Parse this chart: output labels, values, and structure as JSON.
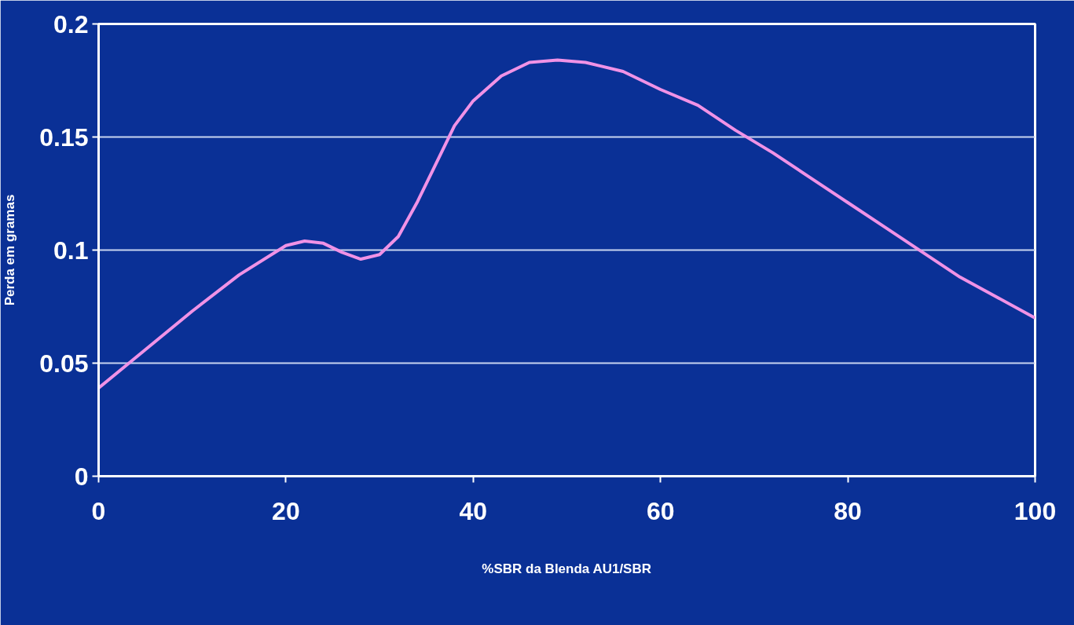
{
  "chart_data": {
    "type": "line",
    "xlabel": "%SBR da Blenda AU1/SBR",
    "ylabel": "Perda em gramas",
    "x": [
      0,
      5,
      10,
      15,
      20,
      22,
      24,
      26,
      28,
      30,
      32,
      34,
      36,
      38,
      40,
      43,
      46,
      49,
      52,
      56,
      60,
      64,
      68,
      72,
      76,
      80,
      84,
      88,
      92,
      96,
      100
    ],
    "series": [
      {
        "color": "#f092e6",
        "values": [
          0.039,
          0.056,
          0.073,
          0.089,
          0.102,
          0.104,
          0.103,
          0.099,
          0.096,
          0.098,
          0.106,
          0.121,
          0.138,
          0.155,
          0.166,
          0.177,
          0.183,
          0.184,
          0.183,
          0.179,
          0.171,
          0.164,
          0.153,
          0.143,
          0.132,
          0.121,
          0.11,
          0.099,
          0.088,
          0.079,
          0.07
        ]
      }
    ],
    "xlim": [
      0,
      100
    ],
    "xticks": [
      0,
      20,
      40,
      60,
      80,
      100
    ],
    "ylim": [
      0,
      0.2
    ],
    "yticks": [
      0,
      0.05,
      0.1,
      0.15,
      0.2
    ],
    "grid": "y",
    "marker": "none",
    "line_style": "solid"
  }
}
